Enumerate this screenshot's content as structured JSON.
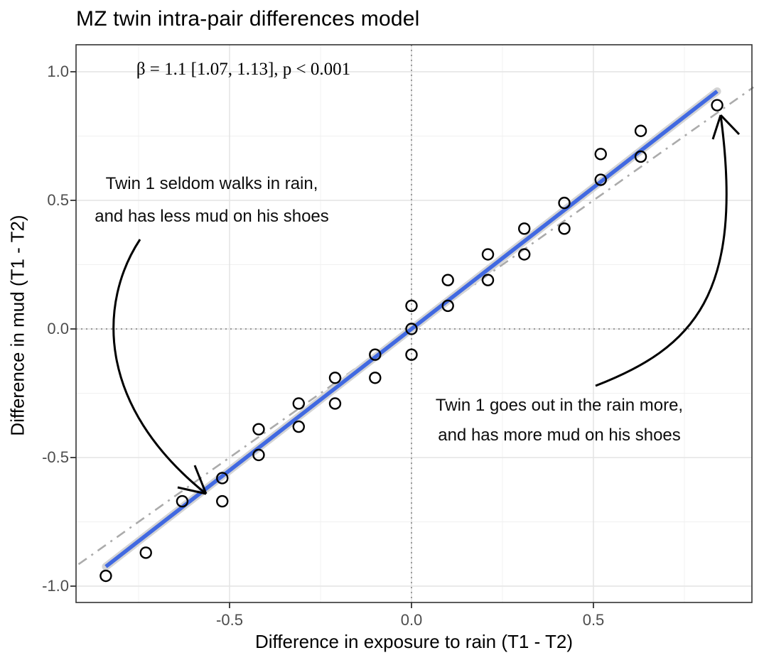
{
  "title": "MZ twin intra-pair differences model",
  "stats_label": "β = 1.1 [1.07, 1.13], p < 0.001",
  "annotations": {
    "left": {
      "line1": "Twin 1 seldom walks in rain,",
      "line2": "and has less mud on his shoes"
    },
    "right": {
      "line1": "Twin 1 goes out in the rain more,",
      "line2": "and has more mud on his shoes"
    }
  },
  "x_axis": {
    "label": "Difference in exposure to rain (T1 - T2)",
    "ticks": [
      "-0.5",
      "0.0",
      "0.5"
    ]
  },
  "y_axis": {
    "label": "Difference in mud (T1 - T2)",
    "ticks": [
      "1.0",
      "0.5",
      "0.0",
      "-0.5",
      "-1.0"
    ]
  },
  "chart_data": {
    "type": "scatter",
    "title": "MZ twin intra-pair differences model",
    "xlabel": "Difference in exposure to rain (T1 - T2)",
    "ylabel": "Difference in mud (T1 - T2)",
    "xlim": [
      -0.92,
      0.94
    ],
    "ylim": [
      -1.06,
      1.1
    ],
    "x_major_ticks": [
      -0.5,
      0,
      0.5
    ],
    "x_minor_ticks": [
      -0.75,
      -0.25,
      0.25,
      0.75
    ],
    "y_major_ticks": [
      -1,
      -0.5,
      0,
      0.5,
      1
    ],
    "y_minor_ticks": [
      -0.75,
      -0.25,
      0.25,
      0.75
    ],
    "grid": true,
    "points": [
      [
        -0.84,
        -0.96
      ],
      [
        -0.73,
        -0.87
      ],
      [
        -0.63,
        -0.67
      ],
      [
        -0.52,
        -0.58
      ],
      [
        -0.52,
        -0.67
      ],
      [
        -0.42,
        -0.39
      ],
      [
        -0.42,
        -0.49
      ],
      [
        -0.31,
        -0.29
      ],
      [
        -0.31,
        -0.38
      ],
      [
        -0.21,
        -0.19
      ],
      [
        -0.21,
        -0.29
      ],
      [
        -0.1,
        -0.1
      ],
      [
        -0.1,
        -0.19
      ],
      [
        0.0,
        0.09
      ],
      [
        0.0,
        0.0
      ],
      [
        0.0,
        -0.1
      ],
      [
        0.1,
        0.19
      ],
      [
        0.1,
        0.09
      ],
      [
        0.21,
        0.29
      ],
      [
        0.21,
        0.19
      ],
      [
        0.31,
        0.39
      ],
      [
        0.31,
        0.29
      ],
      [
        0.42,
        0.49
      ],
      [
        0.42,
        0.39
      ],
      [
        0.52,
        0.68
      ],
      [
        0.52,
        0.58
      ],
      [
        0.63,
        0.77
      ],
      [
        0.63,
        0.67
      ],
      [
        0.84,
        0.87
      ]
    ],
    "regression_line": {
      "slope": 1.1,
      "intercept": 0,
      "x_range": [
        -0.84,
        0.84
      ],
      "color": "#4169e1"
    },
    "confidence_band_color": "#d4d4d4",
    "identity_line": {
      "slope": 1,
      "intercept": 0,
      "style": "dash-dot",
      "color": "#ababab"
    },
    "reference_lines": {
      "x": 0,
      "y": 0,
      "style": "dotted",
      "color": "#999999"
    },
    "point_style": {
      "shape": "open-circle",
      "color": "#000000"
    },
    "colors": {
      "grid_major": "#e4e4e4",
      "grid_minor": "#f0f0f0",
      "panel_border": "#333333",
      "tick_label": "#4d4d4d",
      "arrow": "#000000"
    }
  }
}
